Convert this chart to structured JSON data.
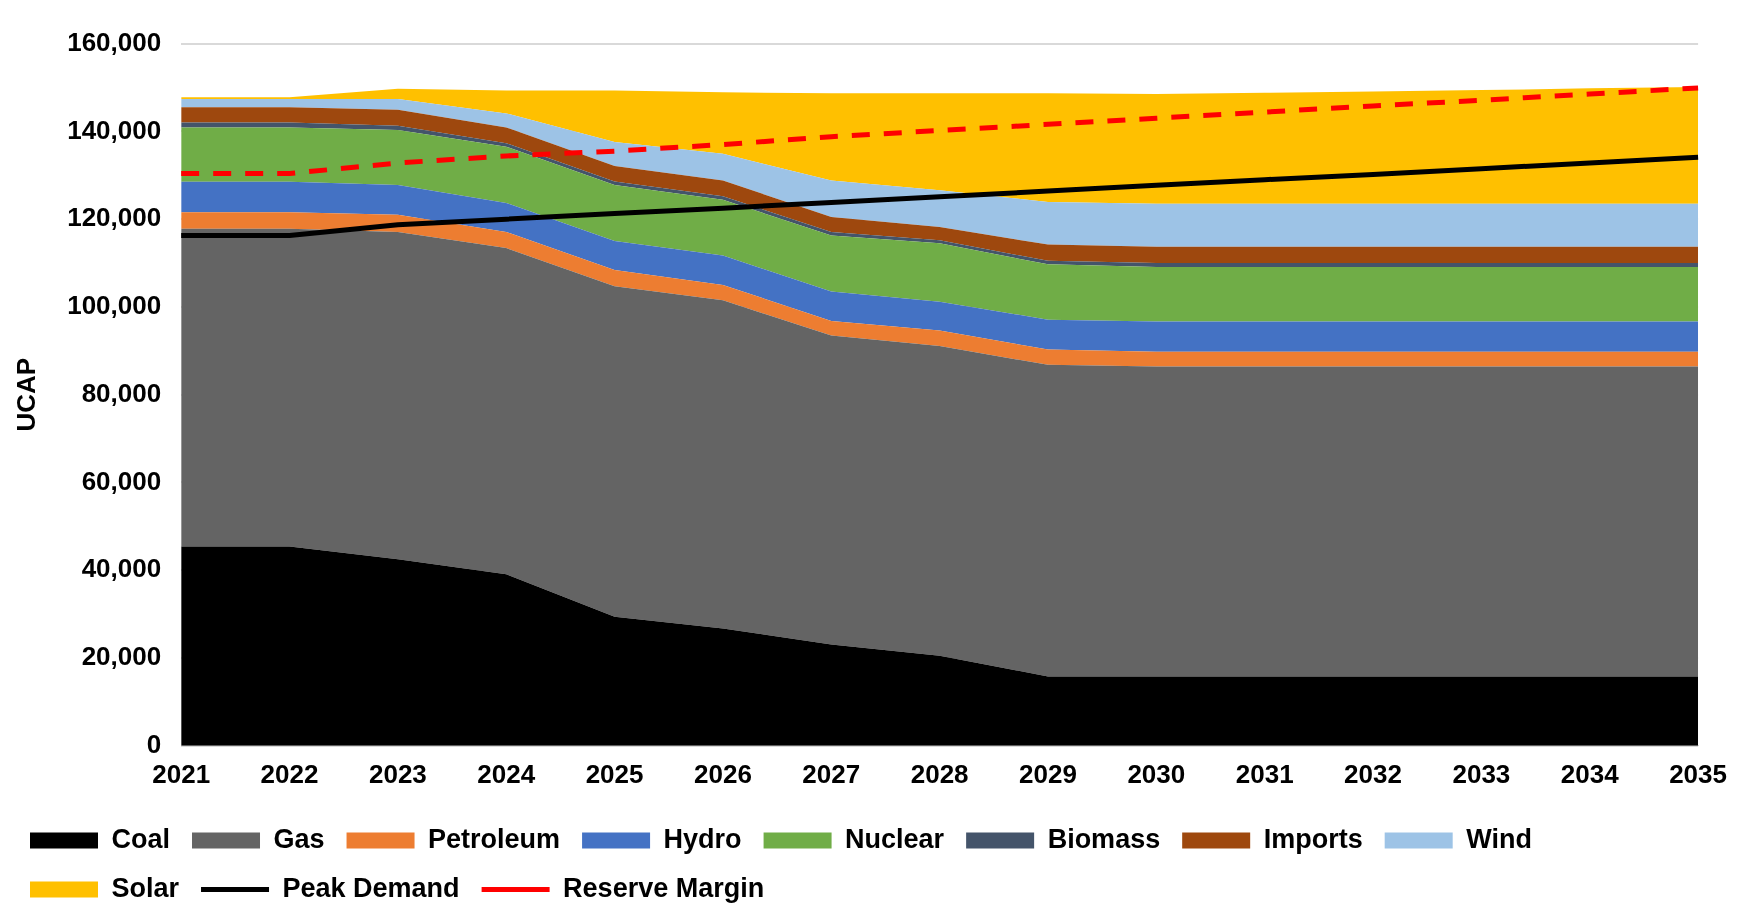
{
  "chart_data": {
    "type": "area",
    "ylabel": "UCAP",
    "stacked": true,
    "legend": "bottom",
    "grid": "y",
    "categories": [
      "2021",
      "2022",
      "2023",
      "2024",
      "2025",
      "2026",
      "2027",
      "2028",
      "2029",
      "2030",
      "2031",
      "2032",
      "2033",
      "2034",
      "2035"
    ],
    "ylim": [
      0,
      160000
    ],
    "yticks": [
      0,
      {
        "value": 20000,
        "label": "20,000"
      },
      {
        "value": 40000,
        "label": "40,000"
      },
      {
        "value": 60000,
        "label": "60,000"
      },
      {
        "value": 80000,
        "label": "80,000"
      },
      {
        "value": 100000,
        "label": "100,000"
      },
      {
        "value": 120000,
        "label": "120,000"
      },
      {
        "value": 140000,
        "label": "140,000"
      },
      {
        "value": 160000,
        "label": "160,000"
      }
    ],
    "series": [
      {
        "name": "Coal",
        "color": "#000000",
        "values": [
          45400,
          45400,
          42500,
          39100,
          29400,
          26700,
          23100,
          20500,
          15800,
          15800,
          15800,
          15800,
          15800,
          15800,
          15800
        ]
      },
      {
        "name": "Gas",
        "color": "#646464",
        "values": [
          72400,
          72400,
          74600,
          74300,
          75300,
          74800,
          70400,
          70600,
          71000,
          70600,
          70600,
          70600,
          70600,
          70600,
          70600
        ]
      },
      {
        "name": "Petroleum",
        "color": "#ed7d31",
        "values": [
          3800,
          3800,
          3900,
          3700,
          3700,
          3500,
          3300,
          3500,
          3500,
          3400,
          3400,
          3400,
          3400,
          3400,
          3400
        ]
      },
      {
        "name": "Hydro",
        "color": "#4472c4",
        "values": [
          6900,
          6900,
          6800,
          6600,
          6600,
          6700,
          6700,
          6600,
          6800,
          6900,
          6900,
          6900,
          6900,
          6900,
          6900
        ]
      },
      {
        "name": "Nuclear",
        "color": "#70ad47",
        "values": [
          12400,
          12400,
          12500,
          12800,
          12800,
          12700,
          12800,
          13300,
          12600,
          12400,
          12400,
          12400,
          12400,
          12400,
          12400
        ]
      },
      {
        "name": "Biomass",
        "color": "#44546a",
        "values": [
          1100,
          1100,
          1000,
          800,
          800,
          800,
          800,
          700,
          800,
          900,
          900,
          900,
          900,
          900,
          900
        ]
      },
      {
        "name": "Imports",
        "color": "#9e480e",
        "values": [
          3500,
          3500,
          3600,
          3600,
          3500,
          3600,
          3400,
          3000,
          3700,
          3700,
          3700,
          3700,
          3700,
          3700,
          3700
        ]
      },
      {
        "name": "Wind",
        "color": "#9dc3e6",
        "values": [
          1900,
          1900,
          2500,
          3200,
          5500,
          6100,
          8300,
          8400,
          9700,
          9800,
          9800,
          9800,
          9800,
          9800,
          9800
        ]
      },
      {
        "name": "Solar",
        "color": "#ffc000",
        "values": [
          400,
          400,
          2300,
          5200,
          11700,
          14000,
          19900,
          22100,
          24800,
          25000,
          25300,
          25600,
          25900,
          26300,
          26600
        ]
      },
      {
        "name": "Peak Demand",
        "type": "line",
        "line_style": "solid",
        "color": "#000000",
        "values": [
          116300,
          116300,
          118700,
          120000,
          121300,
          122500,
          123800,
          125100,
          126400,
          127700,
          129000,
          130200,
          131500,
          132800,
          134100
        ]
      },
      {
        "name": "Reserve Margin",
        "type": "line",
        "line_style": "dashed",
        "color": "#ff0000",
        "values": [
          130400,
          130400,
          132800,
          134400,
          135500,
          137000,
          138800,
          140200,
          141600,
          143000,
          144400,
          145800,
          147100,
          148500,
          149900
        ]
      }
    ]
  }
}
